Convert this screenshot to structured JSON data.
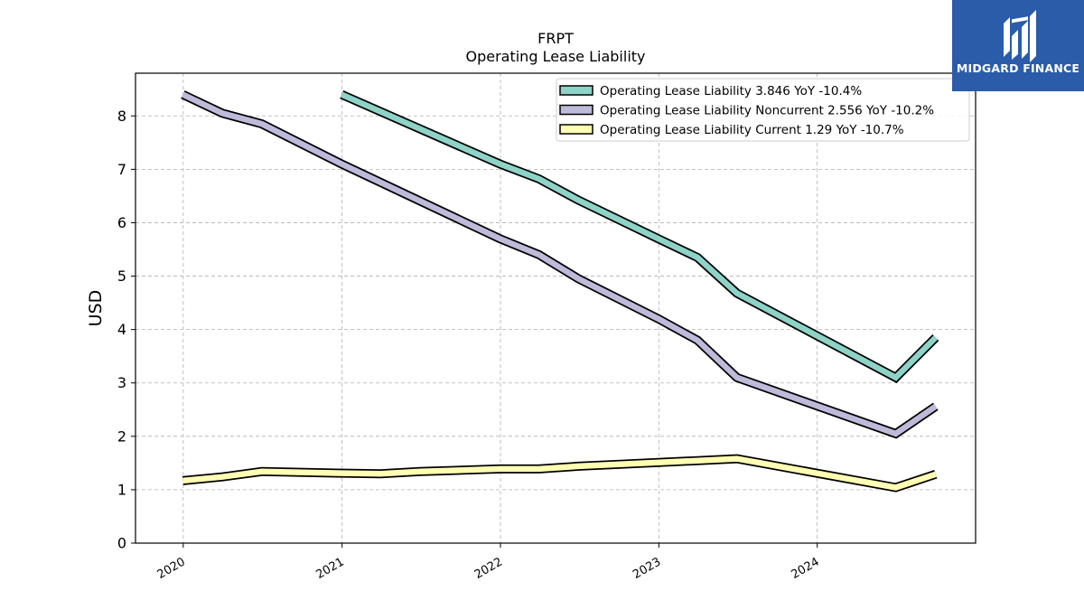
{
  "brand": {
    "name": "MIDGARD FINANCE",
    "color": "#2a5caa",
    "logo_icon": "midgard-logo-icon"
  },
  "chart_data": {
    "type": "line",
    "title": "FRPT",
    "subtitle": "Operating Lease Liability",
    "xlabel": "",
    "ylabel": "USD",
    "ylim": [
      0,
      8.8
    ],
    "yticks": [
      0,
      1,
      2,
      3,
      4,
      5,
      6,
      7,
      8
    ],
    "xlim": [
      "2019-09-13",
      "2024-12-31"
    ],
    "xticks": [
      {
        "date": "2020-01-01",
        "label": "2020"
      },
      {
        "date": "2021-01-01",
        "label": "2021"
      },
      {
        "date": "2022-01-01",
        "label": "2022"
      },
      {
        "date": "2023-01-01",
        "label": "2023"
      },
      {
        "date": "2024-01-01",
        "label": "2024"
      }
    ],
    "grid": true,
    "legend_position": "top-right",
    "series": [
      {
        "name": "Operating Lease Liability  3.846 YoY -10.4%",
        "color": "#8dd3c7",
        "points": [
          {
            "date": "2020-12-31",
            "value": 8.4
          },
          {
            "date": "2021-12-31",
            "value": 7.1
          },
          {
            "date": "2022-03-31",
            "value": 6.82
          },
          {
            "date": "2022-06-30",
            "value": 6.42
          },
          {
            "date": "2022-12-31",
            "value": 5.7
          },
          {
            "date": "2023-03-31",
            "value": 5.35
          },
          {
            "date": "2023-06-30",
            "value": 4.68
          },
          {
            "date": "2024-06-30",
            "value": 3.1
          },
          {
            "date": "2024-09-30",
            "value": 3.85
          }
        ]
      },
      {
        "name": "Operating Lease Liability Noncurrent  2.556 YoY -10.2%",
        "color": "#bebada",
        "points": [
          {
            "date": "2019-12-31",
            "value": 8.4
          },
          {
            "date": "2020-03-31",
            "value": 8.05
          },
          {
            "date": "2020-06-30",
            "value": 7.85
          },
          {
            "date": "2020-12-31",
            "value": 7.1
          },
          {
            "date": "2021-12-31",
            "value": 5.7
          },
          {
            "date": "2022-03-31",
            "value": 5.4
          },
          {
            "date": "2022-06-30",
            "value": 4.95
          },
          {
            "date": "2022-12-31",
            "value": 4.2
          },
          {
            "date": "2023-03-31",
            "value": 3.8
          },
          {
            "date": "2023-06-30",
            "value": 3.1
          },
          {
            "date": "2024-06-30",
            "value": 2.05
          },
          {
            "date": "2024-09-30",
            "value": 2.56
          }
        ]
      },
      {
        "name": "Operating Lease Liability Current  1.29 YoY -10.7%",
        "color": "#ffffb3",
        "points": [
          {
            "date": "2019-12-31",
            "value": 1.17
          },
          {
            "date": "2020-03-31",
            "value": 1.24
          },
          {
            "date": "2020-06-30",
            "value": 1.34
          },
          {
            "date": "2020-12-31",
            "value": 1.31
          },
          {
            "date": "2021-03-31",
            "value": 1.3
          },
          {
            "date": "2021-06-30",
            "value": 1.34
          },
          {
            "date": "2021-12-31",
            "value": 1.39
          },
          {
            "date": "2022-03-31",
            "value": 1.39
          },
          {
            "date": "2022-06-30",
            "value": 1.44
          },
          {
            "date": "2022-12-31",
            "value": 1.51
          },
          {
            "date": "2023-06-30",
            "value": 1.58
          },
          {
            "date": "2024-06-30",
            "value": 1.04
          },
          {
            "date": "2024-09-30",
            "value": 1.29
          }
        ]
      }
    ]
  }
}
